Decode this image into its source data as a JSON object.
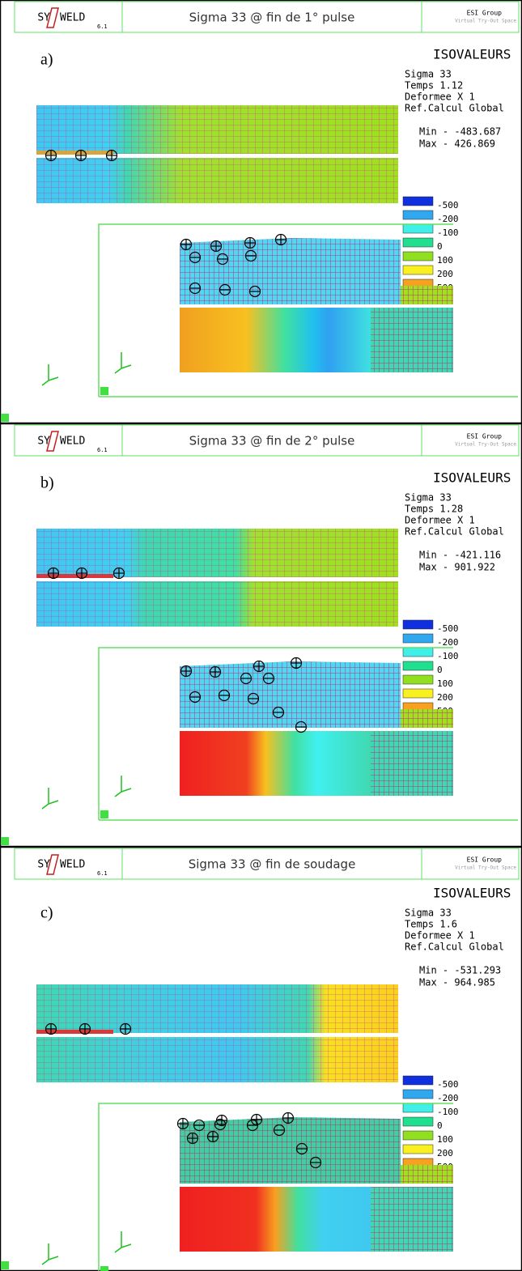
{
  "panels": [
    {
      "logo": "SY",
      "logo_b": "WELD",
      "version": "6.1",
      "title": "Sigma 33 @ fin de 1° pulse",
      "company": "ESI Group",
      "company_sub": "Virtual Try-Out Space",
      "label": "a)",
      "iso": "ISOVALEURS",
      "quantity": "Sigma 33",
      "time": "Temps 1.12",
      "deform": "Deformee X 1",
      "ref": "Ref.Calcul Global",
      "min": "Min - -483.687",
      "max": "Max - 426.869",
      "legend": [
        "-500",
        "-200",
        "-100",
        "0",
        "100",
        "200",
        "500"
      ]
    },
    {
      "logo": "SY",
      "logo_b": "WELD",
      "version": "6.1",
      "title": "Sigma 33 @ fin de 2° pulse",
      "company": "ESI Group",
      "company_sub": "Virtual Try-Out Space",
      "label": "b)",
      "iso": "ISOVALEURS",
      "quantity": "Sigma 33",
      "time": "Temps 1.28",
      "deform": "Deformee X 1",
      "ref": "Ref.Calcul Global",
      "min": "Min - -421.116",
      "max": "Max - 901.922",
      "legend": [
        "-500",
        "-200",
        "-100",
        "0",
        "100",
        "200",
        "500"
      ]
    },
    {
      "logo": "SY",
      "logo_b": "WELD",
      "version": "6.1",
      "title": "Sigma 33 @ fin de soudage",
      "company": "ESI Group",
      "company_sub": "Virtual Try-Out Space",
      "label": "c)",
      "iso": "ISOVALEURS",
      "quantity": "Sigma 33",
      "time": "Temps 1.6",
      "deform": "Deformee X 1",
      "ref": "Ref.Calcul Global",
      "min": "Min - -531.293",
      "max": "Max - 964.985",
      "legend": [
        "-500",
        "-200",
        "-100",
        "0",
        "100",
        "200",
        "500"
      ]
    }
  ]
}
